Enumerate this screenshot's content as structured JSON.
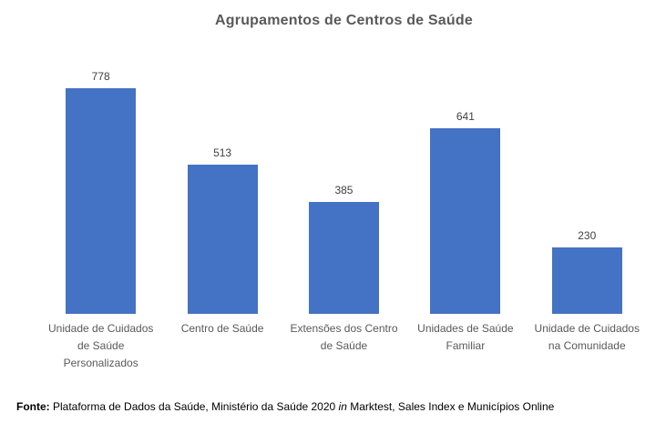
{
  "chart_data": {
    "type": "bar",
    "title": "Agrupamentos de Centros de Saúde",
    "categories": [
      "Unidade de Cuidados de Saúde Personalizados",
      "Centro de Saúde",
      "Extensões dos Centro de Saúde",
      "Unidades de Saúde Familiar",
      "Unidade de Cuidados na Comunidade"
    ],
    "values": [
      778,
      513,
      385,
      641,
      230
    ],
    "value_labels": [
      "778",
      "513",
      "385",
      "641",
      "230"
    ],
    "xlabel": "",
    "ylabel": "",
    "ylim": [
      0,
      900
    ],
    "grid": false,
    "legend": false,
    "axis_lines": false
  },
  "colors": {
    "bar": "#4472C4",
    "title": "#595959",
    "value_label": "#404040",
    "category_label": "#595959",
    "source": "#000000"
  },
  "source_note": {
    "label": "Fonte:",
    "before_in": " Plataforma de Dados da Saúde, Ministério da Saúde 2020 ",
    "in_word": "in",
    "after_in": " Marktest, Sales Index e Municípios Online"
  }
}
